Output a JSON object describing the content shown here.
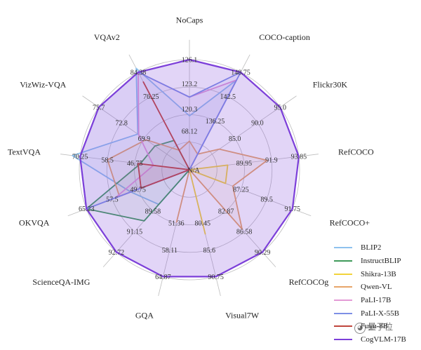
{
  "chart_data": {
    "type": "radar",
    "axes": [
      "NoCaps",
      "COCO-caption",
      "Flickr30K",
      "RefCOCO",
      "RefCOCO+",
      "RefCOCOg",
      "Visual7W",
      "GQA",
      "ScienceQA-IMG",
      "OKVQA",
      "TextVQA",
      "VizWiz-VQA",
      "VQAv2"
    ],
    "center_label": "N/A",
    "ring_ticks": [
      [
        "68.12",
        "120.3",
        "123.2",
        "126.1"
      ],
      [
        "136.25",
        "142.5",
        "148.75"
      ],
      [
        "85.0",
        "90.0",
        "95.0"
      ],
      [
        "89.95",
        "91.9",
        "93.85"
      ],
      [
        "87.25",
        "89.5",
        "91.75"
      ],
      [
        "82.87",
        "86.58",
        "90.29"
      ],
      [
        "80.45",
        "85.6",
        "90.75"
      ],
      [
        "51.36",
        "58.11",
        "64.87"
      ],
      [
        "89.58",
        "91.15",
        "92.72"
      ],
      [
        "49.75",
        "57.5",
        "65.23"
      ],
      [
        "46.75",
        "58.5",
        "70.25"
      ],
      [
        "69.9",
        "72.8",
        "75.7"
      ],
      [
        "76.25",
        "84.38"
      ]
    ],
    "series": [
      {
        "name": "BLIP2",
        "color": "#8ec1ee",
        "values": [
          0.49,
          0.92,
          0,
          0,
          0,
          0,
          0,
          0,
          0.42,
          0.57,
          1.07,
          0.57,
          1.04
        ]
      },
      {
        "name": "InstructBLIP",
        "color": "#3f9a5a",
        "values": [
          0,
          0,
          0,
          0,
          0,
          0,
          0,
          0,
          0.62,
          1.0,
          0.45,
          0.38,
          0.3
        ]
      },
      {
        "name": "Shikra-13B",
        "color": "#f2d33b",
        "values": [
          0,
          0,
          0,
          0.35,
          0.35,
          0,
          0.6,
          0,
          0,
          0,
          0,
          0,
          0
        ]
      },
      {
        "name": "Qwen-VL",
        "color": "#e7a56a",
        "values": [
          0.26,
          0.16,
          0.33,
          0.71,
          0.42,
          0.72,
          0,
          0.49,
          0,
          0.68,
          0.75,
          0.48,
          0.2
        ]
      },
      {
        "name": "PaLI-17B",
        "color": "#e39ad6",
        "values": [
          0.66,
          0.92,
          0,
          0,
          0,
          0,
          0,
          0,
          0,
          0.72,
          0.33,
          0.56,
          1.0
        ]
      },
      {
        "name": "PaLI-X-55B",
        "color": "#7d8fe6",
        "values": [
          0.66,
          1.0,
          0,
          0,
          0,
          0,
          0,
          0,
          0,
          1.0,
          1.0,
          1.0,
          1.0
        ]
      },
      {
        "name": "Fuyu-8B",
        "color": "#c0463d",
        "values": [
          0,
          0,
          0,
          0,
          0,
          0,
          0,
          0,
          0,
          0.47,
          0.47,
          0,
          0.9
        ]
      },
      {
        "name": "CogVLM-17B",
        "color": "#7c3fd9",
        "values": [
          1.0,
          1.0,
          1.0,
          1.0,
          1.0,
          1.0,
          1.0,
          1.0,
          1.0,
          1.0,
          1.0,
          1.0,
          1.0
        ]
      }
    ],
    "legend_position": "bottom-right",
    "grid": true
  },
  "legend_display": [
    "BLIP2",
    "InstructBLIP",
    "Shikra-13B",
    "Qwen-VL",
    "PaLI-17B",
    "PaLI-X-55B",
    "Fuyu-8B",
    "CogVLM-17B"
  ],
  "watermark": "量子位"
}
